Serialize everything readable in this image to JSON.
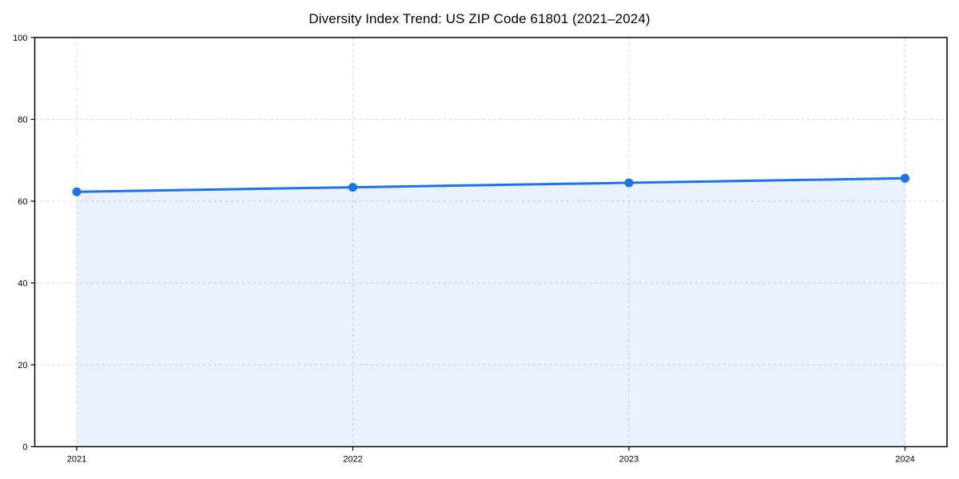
{
  "chart_data": {
    "type": "line",
    "title": "Diversity Index Trend: US ZIP Code 61801 (2021–2024)",
    "categories": [
      "2021",
      "2022",
      "2023",
      "2024"
    ],
    "x": [
      2021,
      2022,
      2023,
      2024
    ],
    "series": [
      {
        "name": "Diversity Index",
        "values": [
          62.3,
          63.4,
          64.5,
          65.6
        ]
      }
    ],
    "xlabel": "",
    "ylabel": "",
    "ylim": [
      0,
      100
    ],
    "yticks": [
      0,
      20,
      40,
      60,
      80,
      100
    ],
    "grid": true,
    "grid_style": "dashed",
    "area_fill": true,
    "markers": true,
    "legend_position": "none",
    "colors": {
      "line": "#1a73e8",
      "marker": "#1a73e8",
      "area_fill": "rgba(26,115,232,0.10)",
      "grid": "#dcdcdc",
      "axis": "#000000",
      "text": "#000000",
      "background": "#ffffff"
    }
  }
}
